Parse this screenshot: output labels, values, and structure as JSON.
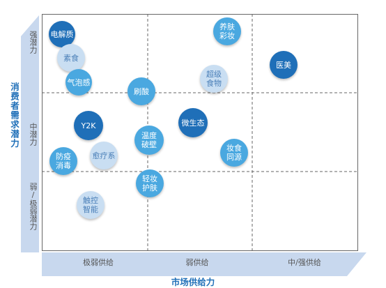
{
  "axes": {
    "y_title": "消费者需求潜力",
    "x_title": "市场供给力",
    "y_levels": [
      "强潜力",
      "中潜力",
      "弱/极弱潜力"
    ],
    "x_levels": [
      "极弱供给",
      "弱供给",
      "中/强供给"
    ]
  },
  "colors": {
    "dark": "#1f6fb8",
    "mid": "#4aa8e0",
    "light": "#c9def2",
    "grid": "#666666",
    "arrow": "#c8d8ee"
  },
  "bubbles": [
    {
      "label": "电解质",
      "tone": "dark"
    },
    {
      "label": "素食",
      "tone": "light"
    },
    {
      "label": "气泡感",
      "tone": "mid"
    },
    {
      "label": "刷酸",
      "tone": "mid"
    },
    {
      "label": "养肤\n彩妆",
      "tone": "mid"
    },
    {
      "label": "超级\n食物",
      "tone": "light"
    },
    {
      "label": "医美",
      "tone": "dark"
    },
    {
      "label": "Y2K",
      "tone": "dark"
    },
    {
      "label": "微生态",
      "tone": "dark"
    },
    {
      "label": "温度\n破壁",
      "tone": "mid"
    },
    {
      "label": "防疫\n消毒",
      "tone": "mid"
    },
    {
      "label": "愈疗系",
      "tone": "light"
    },
    {
      "label": "妆食\n同源",
      "tone": "mid"
    },
    {
      "label": "轻妆\n护肤",
      "tone": "mid"
    },
    {
      "label": "触控\n智能",
      "tone": "light"
    }
  ]
}
